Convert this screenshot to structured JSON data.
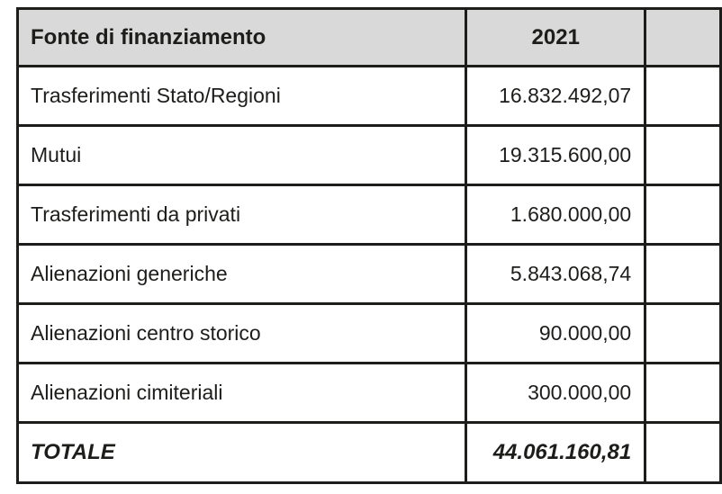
{
  "table": {
    "header": {
      "source_column": "Fonte di finanziamento",
      "year_column": "2021"
    },
    "rows": [
      {
        "label": "Trasferimenti Stato/Regioni",
        "value": "16.832.492,07"
      },
      {
        "label": "Mutui",
        "value": "19.315.600,00"
      },
      {
        "label": "Trasferimenti da privati",
        "value": "1.680.000,00"
      },
      {
        "label": "Alienazioni generiche",
        "value": "5.843.068,74"
      },
      {
        "label": "Alienazioni centro storico",
        "value": "90.000,00"
      },
      {
        "label": "Alienazioni cimiteriali",
        "value": "300.000,00"
      }
    ],
    "total": {
      "label": "TOTALE",
      "value": "44.061.160,81"
    }
  },
  "colors": {
    "header_background": "#d9d9d9",
    "border": "#1d1d1b",
    "text": "#1d1d1b",
    "page_background": "#ffffff"
  }
}
